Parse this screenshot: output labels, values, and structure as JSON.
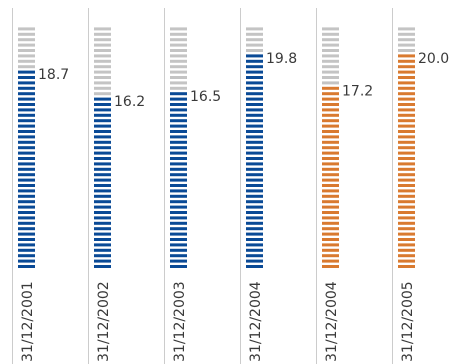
{
  "chart_data": {
    "type": "bar",
    "categories": [
      "31/12/2001",
      "31/12/2002",
      "31/12/2003",
      "31/12/2004",
      "31/12/2004",
      "31/12/2005"
    ],
    "values": [
      18.7,
      16.2,
      16.5,
      19.8,
      17.2,
      20.0
    ],
    "value_labels": [
      "18.7",
      "16.2",
      "16.5",
      "19.8",
      "17.2",
      "20.0"
    ],
    "ylim": [
      0,
      22.5
    ],
    "grid": false,
    "legend": "none",
    "colors": {
      "historical": "#0a4a96",
      "projected": "#d97a30",
      "unfilled": "#c4c4c4",
      "separator": "#cccccc"
    },
    "bar_colors": [
      "historical",
      "historical",
      "historical",
      "historical",
      "projected",
      "projected"
    ]
  }
}
